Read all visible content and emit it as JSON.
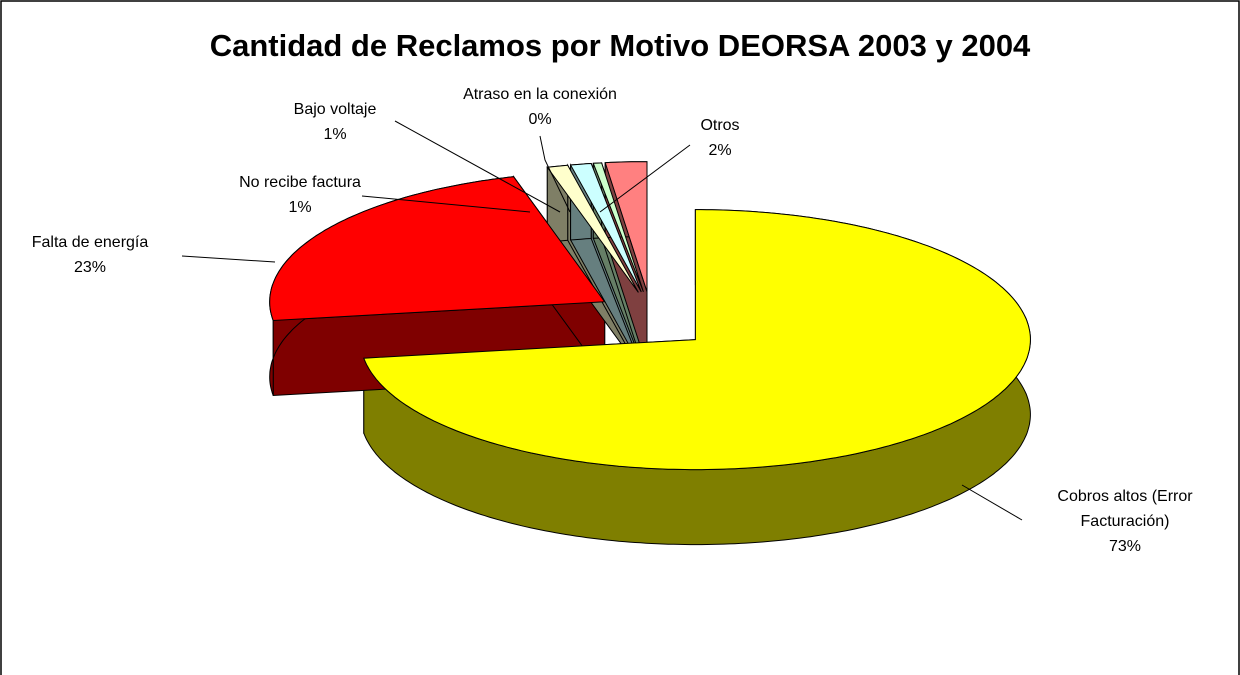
{
  "chart_data": {
    "type": "pie3d",
    "title": "Cantidad de Reclamos por Motivo DEORSA 2003 y 2004",
    "categories": [
      "Cobros altos (Error Facturación)",
      "Falta de energía",
      "No recibe factura",
      "Bajo voltaje",
      "Atraso en la conexión",
      "Otros"
    ],
    "values": [
      73,
      23,
      1,
      1,
      0.4,
      2
    ],
    "value_labels": [
      "73%",
      "23%",
      "1%",
      "1%",
      "0%",
      "2%"
    ],
    "colors": [
      "#ffff00",
      "#ff0000",
      "#ffffcc",
      "#ccffff",
      "#ccffcc",
      "#ff8080"
    ]
  }
}
